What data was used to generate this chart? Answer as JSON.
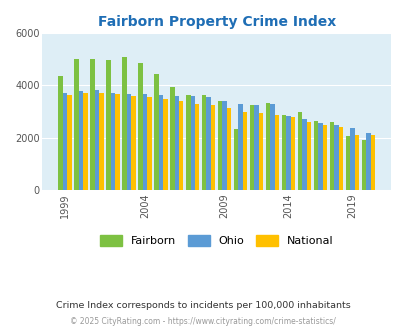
{
  "title": "Fairborn Property Crime Index",
  "subtitle": "Crime Index corresponds to incidents per 100,000 inhabitants",
  "copyright": "© 2025 CityRating.com - https://www.cityrating.com/crime-statistics/",
  "years": [
    1999,
    2000,
    2001,
    2002,
    2003,
    2004,
    2005,
    2006,
    2007,
    2008,
    2009,
    2010,
    2011,
    2012,
    2014,
    2015,
    2016,
    2017,
    2019,
    2020
  ],
  "fairborn": [
    4350,
    5000,
    5000,
    4950,
    5100,
    4870,
    4450,
    3950,
    3650,
    3650,
    3400,
    2350,
    3250,
    3340,
    2870,
    2980,
    2640,
    2620,
    2080,
    1930
  ],
  "ohio": [
    3700,
    3800,
    3820,
    3720,
    3680,
    3670,
    3640,
    3600,
    3580,
    3550,
    3400,
    3300,
    3250,
    3290,
    2850,
    2700,
    2580,
    2490,
    2390,
    2170
  ],
  "national": [
    3650,
    3700,
    3700,
    3660,
    3600,
    3560,
    3490,
    3420,
    3300,
    3260,
    3120,
    2970,
    2950,
    2860,
    2800,
    2600,
    2490,
    2400,
    2090,
    2100
  ],
  "x_tick_years": [
    1999,
    2004,
    2009,
    2014,
    2019
  ],
  "ylim": [
    0,
    6000
  ],
  "yticks": [
    0,
    2000,
    4000,
    6000
  ],
  "bar_color_fairborn": "#7dc142",
  "bar_color_ohio": "#5b9bd5",
  "bar_color_national": "#ffc000",
  "bg_color": "#deeef6",
  "title_color": "#1f6eb5",
  "subtitle_color": "#333333",
  "copyright_color": "#999999"
}
